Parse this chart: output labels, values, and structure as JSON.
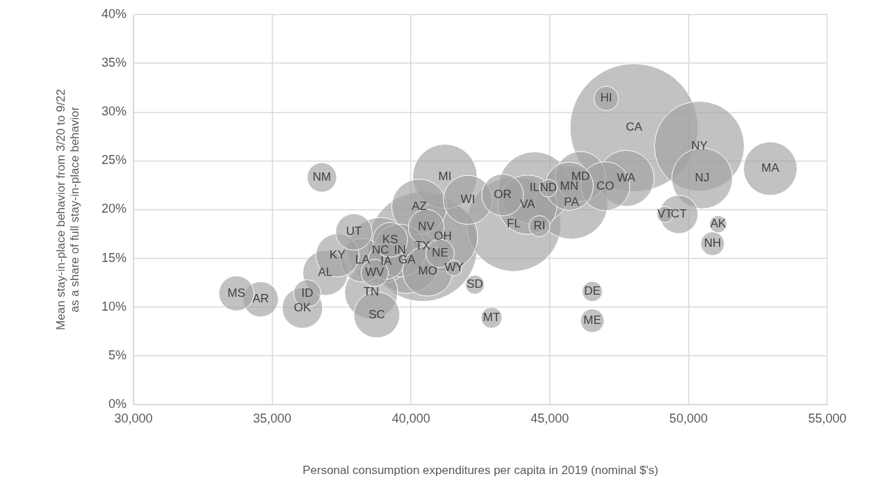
{
  "chart_data": {
    "type": "bubble",
    "xlabel": "Personal consumption expenditures per capita in 2019 (nominal $'s)",
    "ylabel": "Mean stay-in-place behavior from 3/20 to 9/22\nas a share of full stay-in-place behavior",
    "xlim": [
      30000,
      55000
    ],
    "xticks": [
      {
        "value": 30000,
        "label": "30,000"
      },
      {
        "value": 35000,
        "label": "35,000"
      },
      {
        "value": 40000,
        "label": "40,000"
      },
      {
        "value": 45000,
        "label": "45,000"
      },
      {
        "value": 50000,
        "label": "50,000"
      },
      {
        "value": 55000,
        "label": "55,000"
      }
    ],
    "ylim": [
      0,
      40
    ],
    "yticks": [
      {
        "value": 0,
        "label": "0%"
      },
      {
        "value": 5,
        "label": "5%"
      },
      {
        "value": 10,
        "label": "10%"
      },
      {
        "value": 15,
        "label": "15%"
      },
      {
        "value": 20,
        "label": "20%"
      },
      {
        "value": 25,
        "label": "25%"
      },
      {
        "value": 30,
        "label": "30%"
      },
      {
        "value": 35,
        "label": "35%"
      },
      {
        "value": 40,
        "label": "40%"
      }
    ],
    "grid": true,
    "legend": false,
    "series": [
      {
        "color": "#a0a2a3",
        "x": [
          48036,
          40421,
          43702,
          50391,
          45782,
          44450,
          41150,
          39850,
          38900,
          41222,
          50491,
          44203,
          47750,
          40296,
          52946,
          38567,
          39600,
          40600,
          46107,
          42049,
          47000,
          45700,
          38767,
          36914,
          38250,
          37350,
          43302,
          36087,
          49650,
          37941,
          39100,
          40550,
          34584,
          33707,
          39250,
          36789,
          41047,
          36263,
          38692,
          47034,
          50867,
          46533,
          42901,
          44629,
          46533,
          42300,
          44950,
          51067,
          49150,
          41550
        ],
        "values": [
          28.4,
          16.2,
          18.5,
          26.5,
          20.7,
          22.2,
          17.2,
          14.8,
          15.8,
          23.4,
          23.2,
          20.5,
          23.2,
          20.3,
          24.2,
          11.5,
          15.8,
          13.7,
          23.4,
          21.0,
          22.4,
          22.4,
          9.2,
          13.5,
          14.8,
          15.3,
          21.5,
          9.9,
          19.5,
          17.7,
          14.7,
          18.2,
          10.8,
          11.4,
          16.9,
          23.3,
          15.5,
          11.4,
          13.5,
          31.4,
          16.5,
          8.6,
          8.9,
          18.3,
          11.6,
          12.3,
          22.2,
          18.5,
          19.5,
          14.0
        ],
        "sizes": [
          1,
          0.734,
          0.544,
          0.494,
          0.324,
          0.322,
          0.296,
          0.268,
          0.266,
          0.253,
          0.225,
          0.215,
          0.192,
          0.185,
          0.175,
          0.172,
          0.17,
          0.154,
          0.152,
          0.147,
          0.147,
          0.142,
          0.129,
          0.124,
          0.116,
          0.114,
          0.106,
          0.1,
          0.09,
          0.081,
          0.08,
          0.078,
          0.076,
          0.075,
          0.074,
          0.053,
          0.049,
          0.045,
          0.045,
          0.036,
          0.034,
          0.034,
          0.027,
          0.027,
          0.025,
          0.022,
          0.019,
          0.018,
          0.016,
          0.015
        ]
      }
    ],
    "annotations": [
      {
        "text": "CA",
        "x": 48036,
        "y": 28.4
      },
      {
        "text": "TX",
        "x": 40421,
        "y": 16.2
      },
      {
        "text": "FL",
        "x": 43702,
        "y": 18.5
      },
      {
        "text": "NY",
        "x": 50391,
        "y": 26.5
      },
      {
        "text": "PA",
        "x": 45782,
        "y": 20.7
      },
      {
        "text": "IL",
        "x": 44450,
        "y": 22.2
      },
      {
        "text": "OH",
        "x": 41150,
        "y": 17.2
      },
      {
        "text": "GA",
        "x": 39850,
        "y": 14.8
      },
      {
        "text": "NC",
        "x": 38900,
        "y": 15.8
      },
      {
        "text": "MI",
        "x": 41222,
        "y": 23.4
      },
      {
        "text": "NJ",
        "x": 50491,
        "y": 23.2
      },
      {
        "text": "VA",
        "x": 44203,
        "y": 20.5
      },
      {
        "text": "WA",
        "x": 47750,
        "y": 23.2
      },
      {
        "text": "AZ",
        "x": 40296,
        "y": 20.3
      },
      {
        "text": "MA",
        "x": 52946,
        "y": 24.2
      },
      {
        "text": "TN",
        "x": 38567,
        "y": 11.5
      },
      {
        "text": "IN",
        "x": 39600,
        "y": 15.8
      },
      {
        "text": "MO",
        "x": 40600,
        "y": 13.7
      },
      {
        "text": "MD",
        "x": 46107,
        "y": 23.4
      },
      {
        "text": "WI",
        "x": 42049,
        "y": 21.0
      },
      {
        "text": "CO",
        "x": 47000,
        "y": 22.4
      },
      {
        "text": "MN",
        "x": 45700,
        "y": 22.4
      },
      {
        "text": "SC",
        "x": 38767,
        "y": 9.2
      },
      {
        "text": "AL",
        "x": 36914,
        "y": 13.5
      },
      {
        "text": "LA",
        "x": 38250,
        "y": 14.8
      },
      {
        "text": "KY",
        "x": 37350,
        "y": 15.3
      },
      {
        "text": "OR",
        "x": 43302,
        "y": 21.5
      },
      {
        "text": "OK",
        "x": 36087,
        "y": 9.9
      },
      {
        "text": "CT",
        "x": 49650,
        "y": 19.5
      },
      {
        "text": "UT",
        "x": 37941,
        "y": 17.7
      },
      {
        "text": "IA",
        "x": 39100,
        "y": 14.7
      },
      {
        "text": "NV",
        "x": 40550,
        "y": 18.2
      },
      {
        "text": "AR",
        "x": 34584,
        "y": 10.8
      },
      {
        "text": "MS",
        "x": 33707,
        "y": 11.4
      },
      {
        "text": "KS",
        "x": 39250,
        "y": 16.9
      },
      {
        "text": "NM",
        "x": 36789,
        "y": 23.3
      },
      {
        "text": "NE",
        "x": 41047,
        "y": 15.5
      },
      {
        "text": "ID",
        "x": 36263,
        "y": 11.4
      },
      {
        "text": "WV",
        "x": 38692,
        "y": 13.5
      },
      {
        "text": "HI",
        "x": 47034,
        "y": 31.4
      },
      {
        "text": "NH",
        "x": 50867,
        "y": 16.5
      },
      {
        "text": "ME",
        "x": 46533,
        "y": 8.6
      },
      {
        "text": "MT",
        "x": 42901,
        "y": 8.9
      },
      {
        "text": "RI",
        "x": 44629,
        "y": 18.3
      },
      {
        "text": "DE",
        "x": 46533,
        "y": 11.6
      },
      {
        "text": "SD",
        "x": 42300,
        "y": 12.3
      },
      {
        "text": "ND",
        "x": 44950,
        "y": 22.2
      },
      {
        "text": "AK",
        "x": 51067,
        "y": 18.5
      },
      {
        "text": "VT",
        "x": 49150,
        "y": 19.5
      },
      {
        "text": "WY",
        "x": 41550,
        "y": 14.0
      }
    ]
  }
}
